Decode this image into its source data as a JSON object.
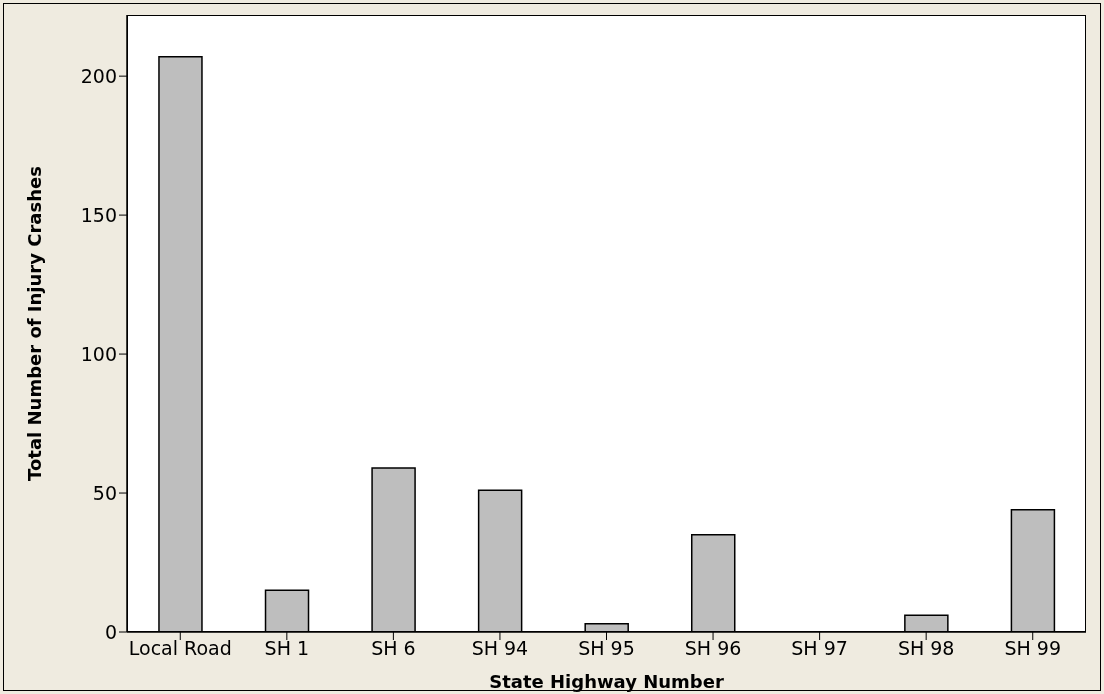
{
  "chart_data": {
    "type": "bar",
    "xlabel": "State Highway Number",
    "ylabel": "Total Number of Injury Crashes",
    "categories": [
      "Local Road",
      "SH 1",
      "SH 6",
      "SH 94",
      "SH 95",
      "SH 96",
      "SH 97",
      "SH 98",
      "SH 99"
    ],
    "values": [
      207,
      15,
      59,
      51,
      3,
      35,
      0,
      6,
      44
    ],
    "color": "#bebebe",
    "ylim": [
      0,
      222
    ],
    "yticks": [
      0,
      50,
      100,
      150,
      200
    ],
    "grid": false,
    "legend": false
  }
}
